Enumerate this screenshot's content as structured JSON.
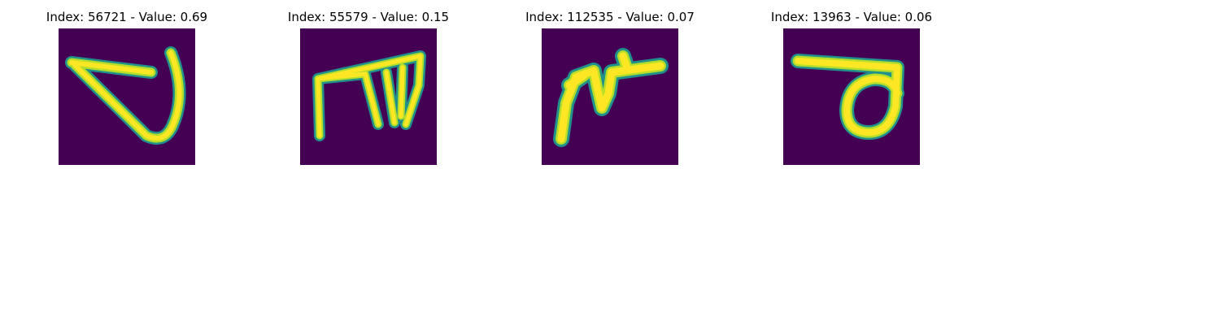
{
  "figure": {
    "panels": [
      {
        "index": 56721,
        "value": 0.69,
        "title": "Index: 56721 - Value: 0.69",
        "glyph": "glyph-a-icon"
      },
      {
        "index": 55579,
        "value": 0.15,
        "title": "Index: 55579 - Value: 0.15",
        "glyph": "glyph-b-icon"
      },
      {
        "index": 112535,
        "value": 0.07,
        "title": "Index: 112535 - Value: 0.07",
        "glyph": "glyph-c-icon"
      },
      {
        "index": 13963,
        "value": 0.06,
        "title": "Index: 13963 - Value: 0.06",
        "glyph": "glyph-d-icon"
      }
    ],
    "colors": {
      "background": "#440154",
      "stroke_core": "#fde725",
      "stroke_mid": "#b5de2b",
      "stroke_edge": "#21918c"
    }
  }
}
